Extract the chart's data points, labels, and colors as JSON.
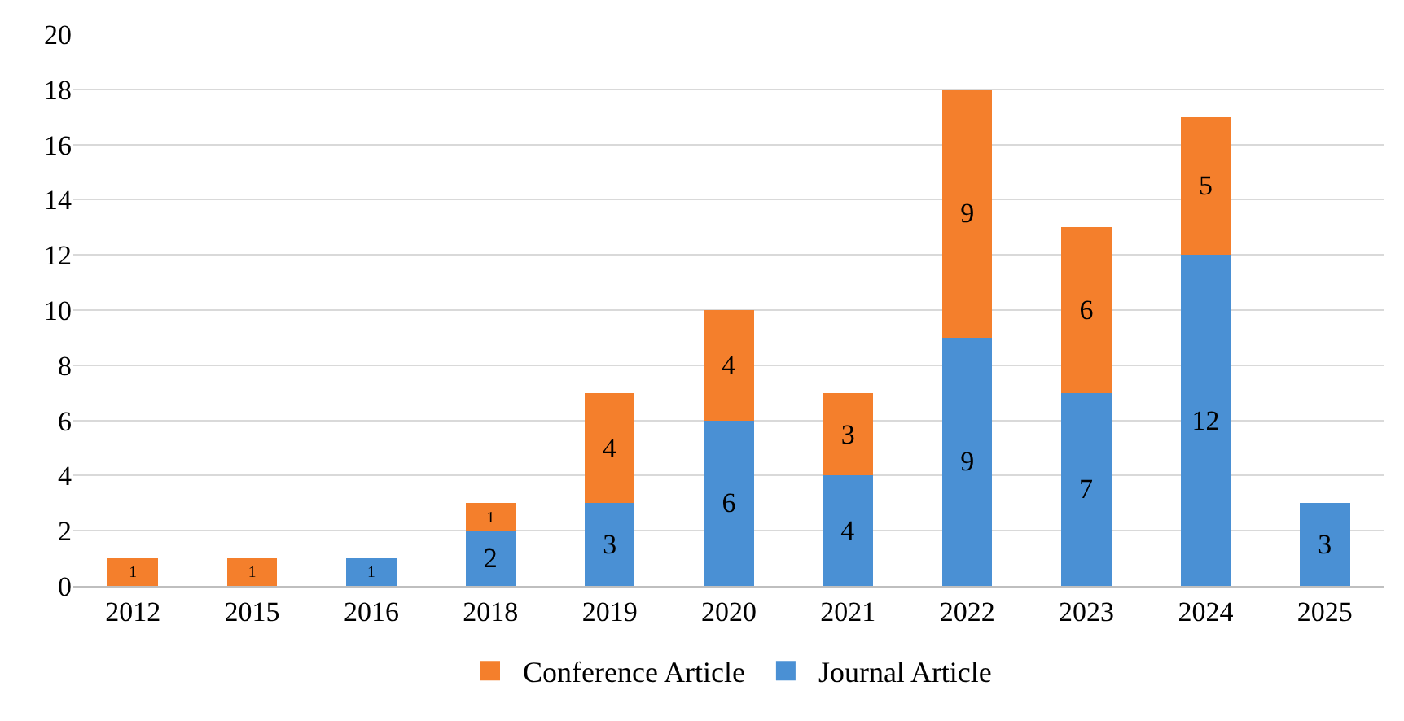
{
  "chart_data": {
    "type": "bar",
    "stacked": true,
    "categories": [
      "2012",
      "2015",
      "2016",
      "2018",
      "2019",
      "2020",
      "2021",
      "2022",
      "2023",
      "2024",
      "2025"
    ],
    "series": [
      {
        "name": "Journal Article",
        "color": "#4a90d4",
        "values": [
          null,
          null,
          1,
          2,
          3,
          6,
          4,
          9,
          7,
          12,
          3
        ]
      },
      {
        "name": "Conference Article",
        "color": "#f47f2c",
        "values": [
          1,
          1,
          null,
          1,
          4,
          4,
          3,
          9,
          6,
          5,
          null
        ]
      }
    ],
    "ylim": [
      0,
      20
    ],
    "yticks": [
      0,
      2,
      4,
      6,
      8,
      10,
      12,
      14,
      16,
      18,
      20
    ],
    "grid": "y",
    "legend": "bottom",
    "data_labels": true
  }
}
